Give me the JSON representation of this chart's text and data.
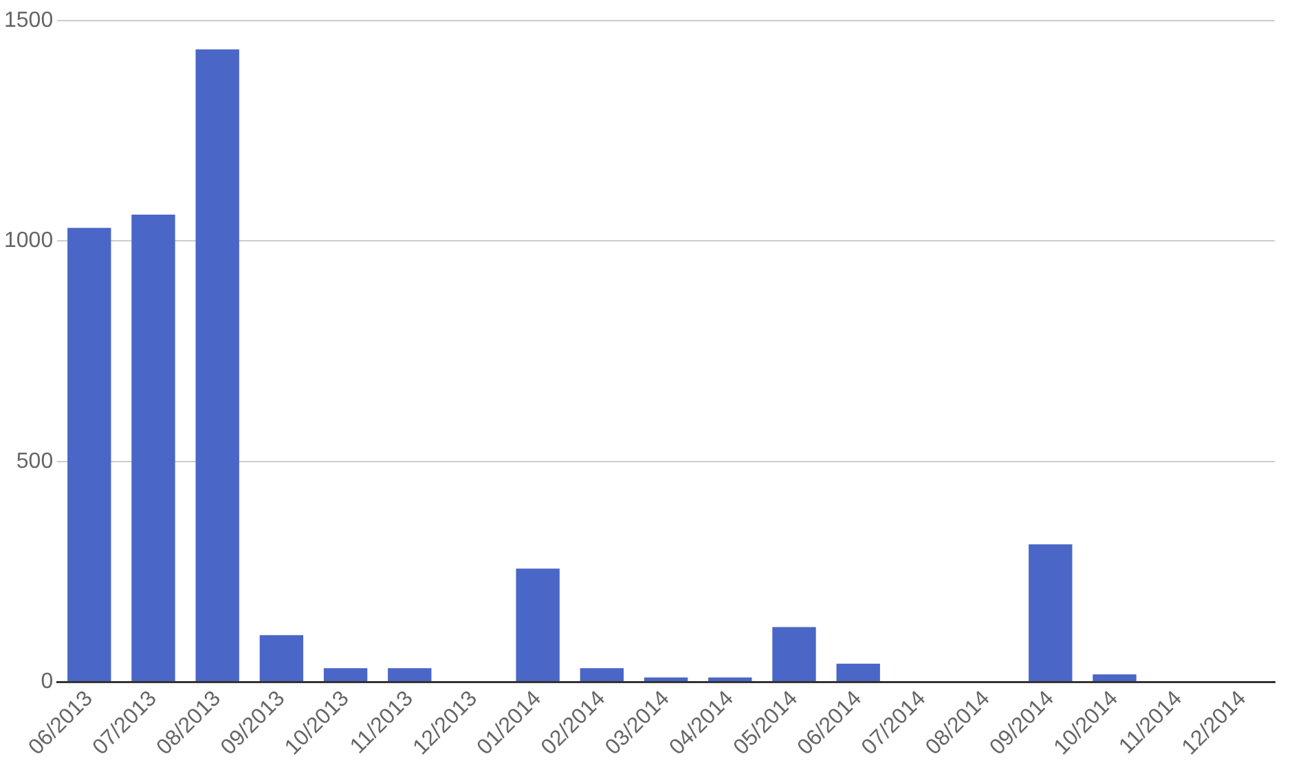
{
  "chart_data": {
    "type": "bar",
    "categories": [
      "06/2013",
      "07/2013",
      "08/2013",
      "09/2013",
      "10/2013",
      "11/2013",
      "12/2013",
      "01/2014",
      "02/2014",
      "03/2014",
      "04/2014",
      "05/2014",
      "06/2014",
      "07/2014",
      "08/2014",
      "09/2014",
      "10/2014",
      "11/2014",
      "12/2014"
    ],
    "values": [
      1030,
      1060,
      1435,
      106,
      31,
      31,
      0,
      257,
      31,
      10,
      10,
      124,
      41,
      0,
      0,
      312,
      17,
      0,
      0
    ],
    "color": "#4a66c6",
    "ylim": [
      0,
      1500
    ],
    "yticks": [
      0,
      500,
      1000,
      1500
    ],
    "grid": "y",
    "legend": false
  }
}
